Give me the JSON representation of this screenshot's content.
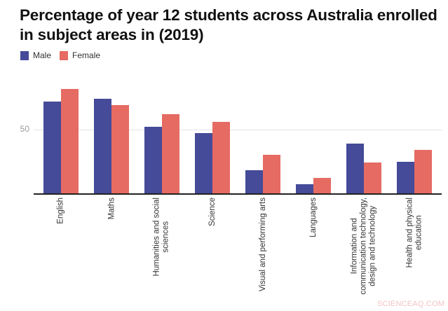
{
  "chart_data": {
    "type": "bar",
    "title": "Percentage of year 12 students across Australia enrolled in subject areas in (2019)",
    "xlabel": "",
    "ylabel": "",
    "ylim": [
      0,
      100
    ],
    "yticks": [
      50
    ],
    "grid": true,
    "legend_position": "top-left",
    "categories": [
      "English",
      "Maths",
      "Humanities and social\nsciences",
      "Science",
      "Visual and performing arts",
      "Languages",
      "Information and\ncommunication technology,\ndesign and technology",
      "Health and physical\neducation"
    ],
    "series": [
      {
        "name": "Male",
        "color": "#454b98",
        "values": [
          72,
          74,
          52,
          47,
          18,
          7,
          39,
          25
        ]
      },
      {
        "name": "Female",
        "color": "#e56b63",
        "values": [
          82,
          69,
          62,
          56,
          30,
          12,
          24,
          34
        ]
      }
    ]
  },
  "header": {
    "title": "Percentage of year 12 students across Australia enrolled in subject areas in (2019)"
  },
  "legend": {
    "items": [
      {
        "label": "Male",
        "color": "#454b98"
      },
      {
        "label": "Female",
        "color": "#e56b63"
      }
    ]
  },
  "axis": {
    "y_tick_label": "50"
  },
  "watermark": "SCIENCEAQ.COM"
}
